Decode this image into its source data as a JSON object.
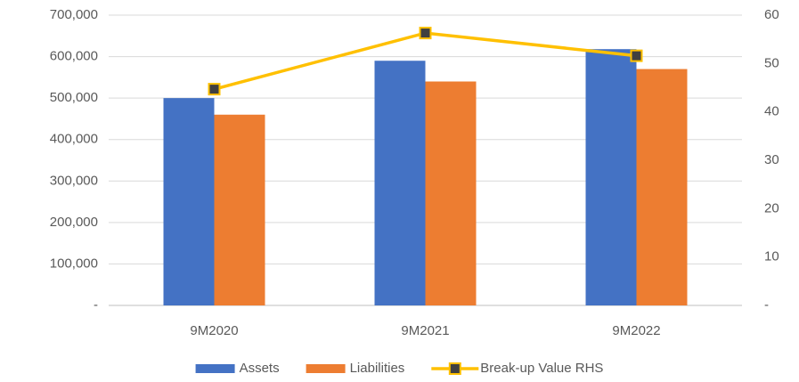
{
  "chart_data": {
    "type": "bar",
    "categories": [
      "9M2020",
      "9M2021",
      "9M2022"
    ],
    "series": [
      {
        "name": "Assets",
        "color": "#4472c4",
        "values": [
          500000,
          590000,
          618000
        ]
      },
      {
        "name": "Liabilities",
        "color": "#ed7d31",
        "values": [
          460000,
          540000,
          570000
        ]
      },
      {
        "name": "Break-up Value RHS",
        "type": "line",
        "axis": "y2",
        "color": "#ffc000",
        "marker_color": "#404040",
        "values": [
          44.7,
          56.3,
          51.6
        ]
      }
    ],
    "ylim": [
      0,
      700000
    ],
    "yticks": [
      {
        "value": 0,
        "label": "-"
      },
      {
        "value": 100000,
        "label": "100,000"
      },
      {
        "value": 200000,
        "label": "200,000"
      },
      {
        "value": 300000,
        "label": "300,000"
      },
      {
        "value": 400000,
        "label": "400,000"
      },
      {
        "value": 500000,
        "label": "500,000"
      },
      {
        "value": 600000,
        "label": "600,000"
      },
      {
        "value": 700000,
        "label": "700,000"
      }
    ],
    "y2lim": [
      0,
      60
    ],
    "y2ticks": [
      {
        "value": 0,
        "label": "-"
      },
      10,
      20,
      30,
      40,
      50,
      60
    ],
    "grid": true,
    "legend": "bottom"
  }
}
